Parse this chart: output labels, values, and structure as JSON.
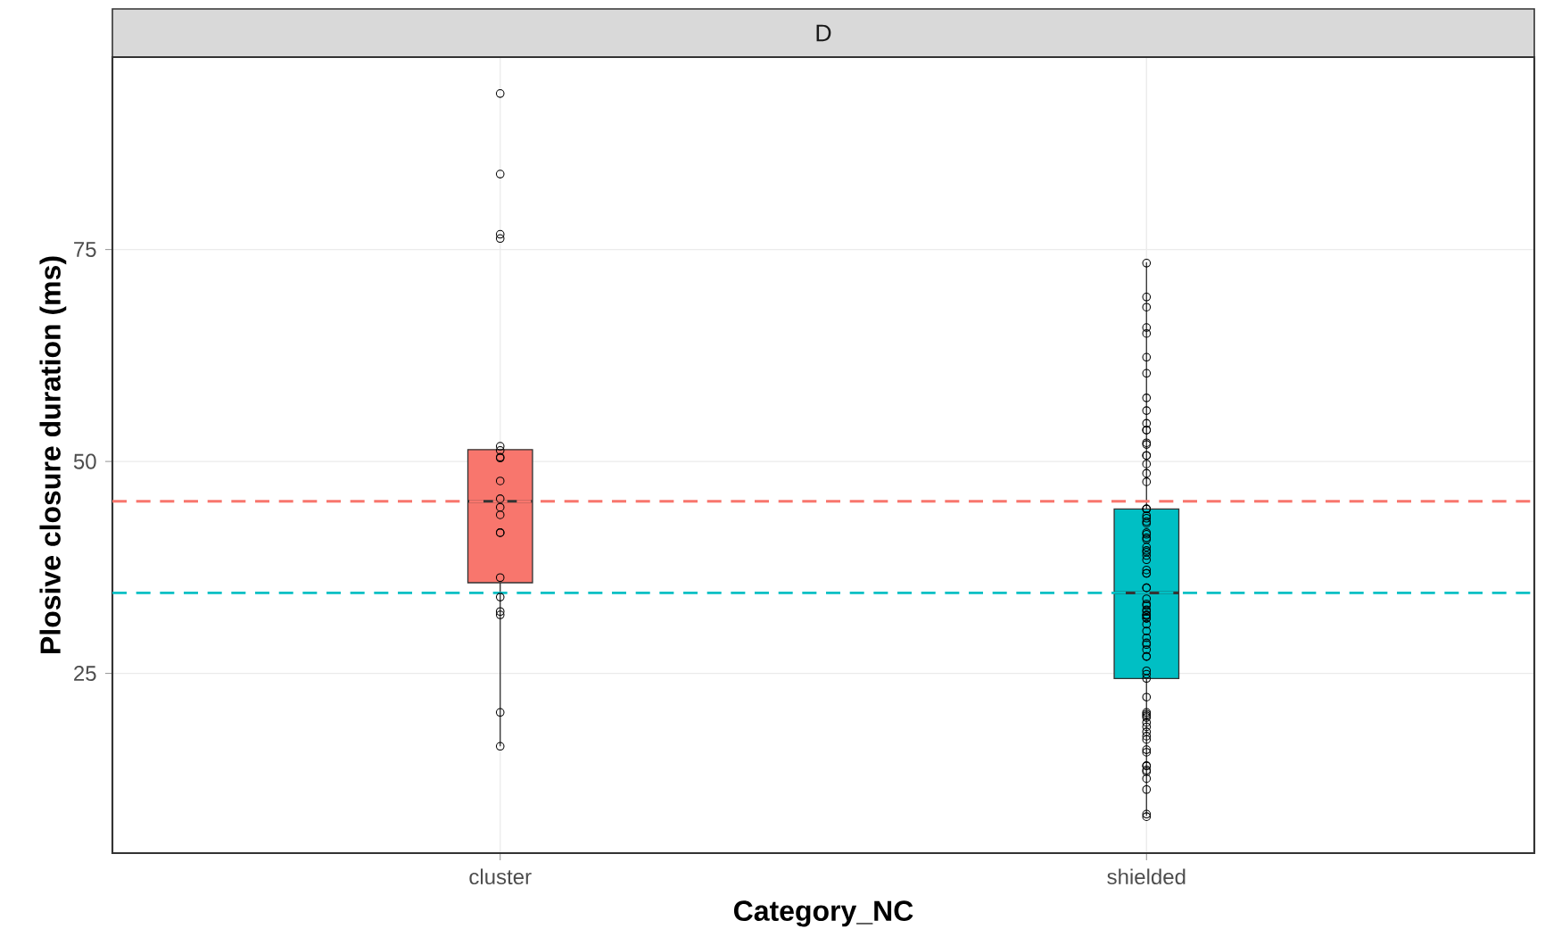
{
  "chart_data": {
    "type": "box",
    "title": "D",
    "xlabel": "Category_NC",
    "ylabel": "Plosive closure duration (ms)",
    "categories": [
      "cluster",
      "shielded"
    ],
    "ylim": [
      3.8,
      97.7
    ],
    "yticks": [
      25,
      50,
      75
    ],
    "grid": true,
    "marker": "circle",
    "boxes": [
      {
        "low": 16.4,
        "q1": 35.7,
        "median": 45.3,
        "q3": 51.4,
        "high": 51.4
      },
      {
        "low": 8.2,
        "q1": 24.4,
        "median": 34.5,
        "q3": 44.4,
        "high": 73.5
      }
    ],
    "colors": [
      "#f8766d",
      "#00bfc4"
    ],
    "series": [
      {
        "type": "scatter",
        "color": "#000000",
        "x": [
          "cluster",
          "cluster",
          "cluster",
          "cluster",
          "cluster",
          "cluster",
          "cluster",
          "cluster",
          "cluster",
          "cluster",
          "cluster",
          "cluster",
          "cluster",
          "cluster",
          "cluster",
          "cluster",
          "cluster",
          "cluster",
          "cluster",
          "cluster"
        ],
        "values": [
          93.4,
          83.9,
          76.8,
          76.3,
          51.8,
          51.3,
          50.4,
          50.5,
          47.7,
          45.6,
          44.6,
          43.7,
          41.6,
          41.6,
          36.3,
          34.0,
          32.3,
          31.9,
          20.4,
          16.4
        ]
      },
      {
        "type": "scatter",
        "color": "#000000",
        "x": [
          "shielded",
          "shielded",
          "shielded",
          "shielded",
          "shielded",
          "shielded",
          "shielded",
          "shielded",
          "shielded",
          "shielded",
          "shielded",
          "shielded",
          "shielded",
          "shielded",
          "shielded",
          "shielded",
          "shielded",
          "shielded",
          "shielded",
          "shielded",
          "shielded",
          "shielded",
          "shielded",
          "shielded",
          "shielded",
          "shielded",
          "shielded",
          "shielded",
          "shielded",
          "shielded",
          "shielded",
          "shielded",
          "shielded",
          "shielded",
          "shielded",
          "shielded",
          "shielded",
          "shielded",
          "shielded",
          "shielded",
          "shielded",
          "shielded",
          "shielded",
          "shielded",
          "shielded",
          "shielded",
          "shielded",
          "shielded",
          "shielded",
          "shielded",
          "shielded",
          "shielded",
          "shielded",
          "shielded",
          "shielded",
          "shielded",
          "shielded",
          "shielded",
          "shielded",
          "shielded",
          "shielded",
          "shielded",
          "shielded",
          "shielded",
          "shielded",
          "shielded",
          "shielded",
          "shielded",
          "shielded",
          "shielded",
          "shielded",
          "shielded",
          "shielded",
          "shielded",
          "shielded",
          "shielded",
          "shielded",
          "shielded",
          "shielded",
          "shielded",
          "shielded"
        ],
        "values": [
          73.4,
          69.4,
          68.2,
          65.8,
          65.1,
          62.3,
          60.4,
          57.5,
          56.0,
          54.5,
          53.7,
          53.7,
          52.2,
          52.0,
          50.7,
          50.7,
          49.7,
          47.6,
          48.6,
          44.4,
          44.4,
          44.4,
          43.6,
          42.7,
          43.3,
          42.9,
          41.6,
          41.0,
          41.4,
          40.8,
          39.9,
          39.5,
          39.3,
          38.4,
          38.9,
          36.8,
          36.8,
          37.2,
          35.1,
          35.1,
          33.8,
          33.2,
          32.5,
          33.0,
          31.9,
          32.3,
          31.8,
          31.5,
          31.5,
          31.9,
          30.8,
          30.0,
          29.2,
          28.4,
          28.6,
          27.8,
          27.0,
          27.0,
          24.9,
          24.4,
          25.3,
          22.2,
          20.4,
          20.2,
          19.2,
          18.7,
          20.0,
          18.1,
          19.8,
          17.6,
          16.0,
          17.2,
          15.7,
          13.6,
          14.1,
          13.4,
          14.1,
          12.6,
          11.3,
          8.4,
          8.1
        ]
      }
    ],
    "ref_lines": [
      {
        "axis": "y",
        "value": 45.3,
        "color": "#f8766d",
        "line_style": "dashed"
      },
      {
        "axis": "y",
        "value": 34.5,
        "color": "#00bfc4",
        "line_style": "dashed"
      }
    ]
  }
}
